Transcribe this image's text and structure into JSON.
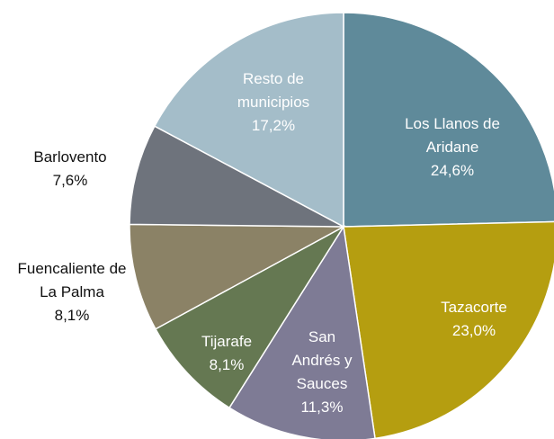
{
  "chart_data": {
    "type": "pie",
    "categories": [
      "Los Llanos de Aridane",
      "Tazacorte",
      "San Andrés y Sauces",
      "Tijarafe",
      "Fuencaliente de La Palma",
      "Barlovento",
      "Resto de municipios"
    ],
    "values": [
      24.6,
      23.0,
      11.3,
      8.1,
      8.1,
      7.6,
      17.2
    ],
    "value_labels": [
      "24,6%",
      "23,0%",
      "11,3%",
      "8,1%",
      "8,1%",
      "7,6%",
      "17,2%"
    ],
    "colors": [
      "#5f8a9a",
      "#b59e10",
      "#7e7b95",
      "#657852",
      "#8b8266",
      "#6e737c",
      "#a4bdc9"
    ]
  }
}
